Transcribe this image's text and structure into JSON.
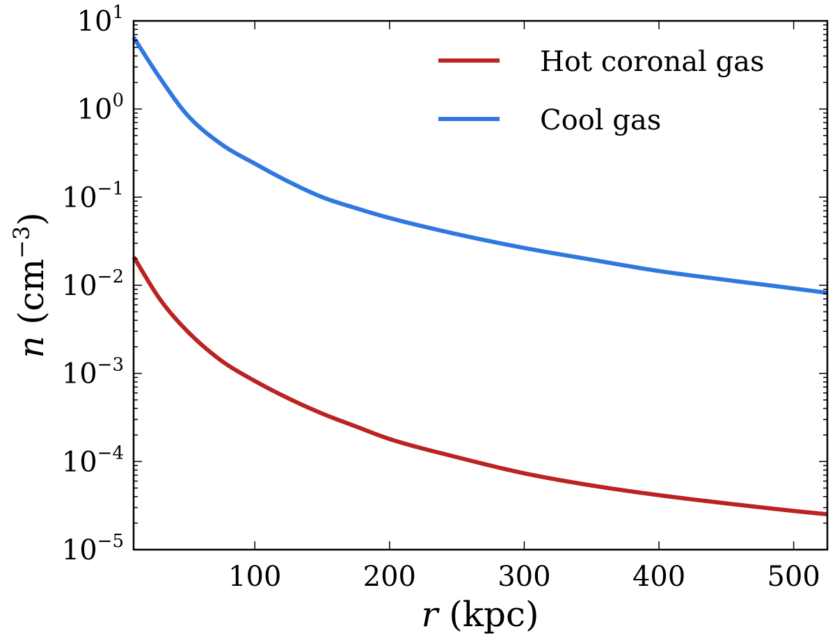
{
  "chart_data": {
    "type": "line",
    "x_scale": "linear",
    "y_scale": "log",
    "xlim": [
      10,
      525
    ],
    "ylim": [
      1e-05,
      10
    ],
    "xticks": [
      100,
      200,
      300,
      400,
      500
    ],
    "xtick_labels": [
      "100",
      "200",
      "300",
      "400",
      "500"
    ],
    "yticks": [
      {
        "exponent": -5,
        "base": "10",
        "exp_label": "−5"
      },
      {
        "exponent": -4,
        "base": "10",
        "exp_label": "−4"
      },
      {
        "exponent": -3,
        "base": "10",
        "exp_label": "−3"
      },
      {
        "exponent": -2,
        "base": "10",
        "exp_label": "−2"
      },
      {
        "exponent": -1,
        "base": "10",
        "exp_label": "−1"
      },
      {
        "exponent": 0,
        "base": "10",
        "exp_label": "0"
      },
      {
        "exponent": 1,
        "base": "10",
        "exp_label": "1"
      }
    ],
    "xlabel": {
      "var": "r",
      "unit": " (kpc)"
    },
    "ylabel": {
      "var": "n",
      "unit_open": " (cm",
      "unit_exp": "−3",
      "unit_close": ")"
    },
    "legend_position": "upper-right",
    "series": [
      {
        "name": "Hot coronal gas",
        "color": "#bb2222",
        "points": [
          [
            10,
            0.021
          ],
          [
            30,
            0.0068
          ],
          [
            50,
            0.003
          ],
          [
            75,
            0.0014
          ],
          [
            100,
            0.00082
          ],
          [
            125,
            0.00052
          ],
          [
            150,
            0.00035
          ],
          [
            175,
            0.00025
          ],
          [
            200,
            0.00018
          ],
          [
            250,
            0.000112
          ],
          [
            300,
            7.35e-05
          ],
          [
            350,
            5.35e-05
          ],
          [
            400,
            4.15e-05
          ],
          [
            450,
            3.35e-05
          ],
          [
            500,
            2.75e-05
          ],
          [
            525,
            2.52e-05
          ]
        ]
      },
      {
        "name": "Cool gas",
        "color": "#2e78e0",
        "points": [
          [
            10,
            6.5
          ],
          [
            30,
            2.2
          ],
          [
            50,
            0.85
          ],
          [
            75,
            0.4
          ],
          [
            100,
            0.24
          ],
          [
            125,
            0.15
          ],
          [
            150,
            0.1
          ],
          [
            175,
            0.075
          ],
          [
            200,
            0.058
          ],
          [
            250,
            0.038
          ],
          [
            300,
            0.0265
          ],
          [
            350,
            0.0195
          ],
          [
            400,
            0.0145
          ],
          [
            450,
            0.0115
          ],
          [
            500,
            0.0092
          ],
          [
            525,
            0.0082
          ]
        ]
      }
    ]
  }
}
